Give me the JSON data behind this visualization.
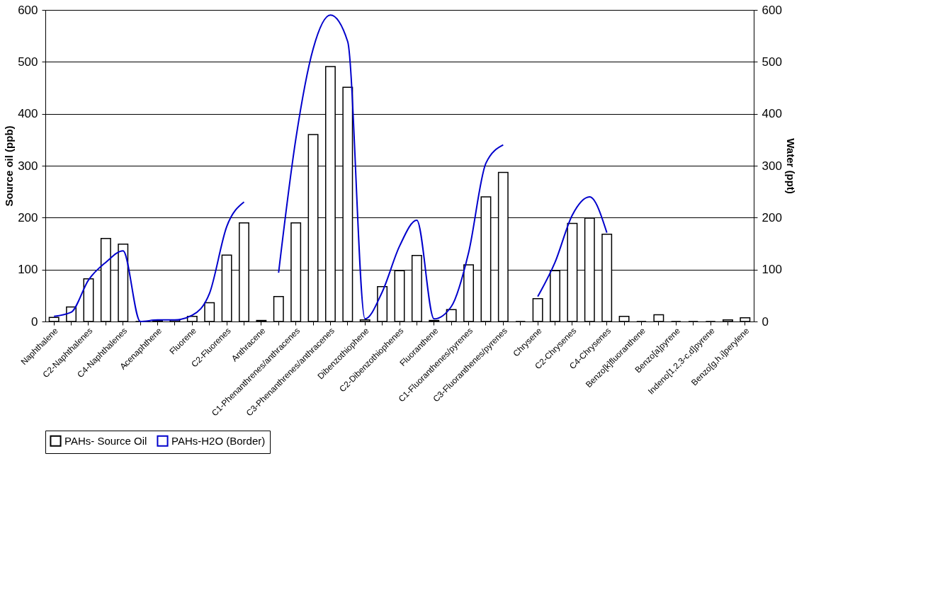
{
  "chart_data": {
    "type": "bar",
    "categories": [
      "Naphthalene",
      null,
      "C2-Naphthalenes",
      null,
      "C4-Naphthalenes",
      null,
      "Acenaphthene",
      null,
      "Fluorene",
      null,
      "C2-Fluorenes",
      null,
      "Anthracene",
      null,
      "C1-Phenanthrenes/anthracenes",
      null,
      "C3-Phenanthrenes/anthracenes",
      null,
      "Dibenzothiophene",
      null,
      "C2-Dibenzothiophenes",
      null,
      "Fluoranthene",
      null,
      "C1-Fluoranthenes/pyrenes",
      null,
      "C3-Fluoranthenes/pyrenes",
      null,
      "Chrysene",
      null,
      "C2-Chrysenes",
      null,
      "C4-Chrysenes",
      null,
      "Benzo[k]fluoranthene",
      null,
      "Benzo[a]pyrene",
      null,
      "Indeno[1,2,3-c,d]pyrene",
      null,
      "Benzo[g,h,i]perylene"
    ],
    "ylabel": "Source oil (ppb)",
    "y2label": "Water (ppt)",
    "series": [
      {
        "name": "PAHs- Source Oil",
        "color": "#000000",
        "values": [
          8,
          28,
          82,
          160,
          149,
          0,
          2,
          3,
          10,
          36,
          128,
          190,
          2,
          48,
          190,
          360,
          491,
          451,
          3,
          67,
          98,
          127,
          2,
          23,
          109,
          240,
          287,
          0,
          44,
          98,
          189,
          199,
          168,
          10,
          0,
          13,
          0,
          0,
          0,
          3,
          7
        ]
      },
      {
        "name": "PAHs-H2O (Border)",
        "type": "line",
        "axis": "y2",
        "color": "#0000cc",
        "values": [
          10,
          18,
          80,
          114,
          136,
          0,
          3,
          3,
          12,
          54,
          183,
          230,
          null,
          94,
          352,
          525,
          590,
          539,
          5,
          57,
          145,
          195,
          5,
          29,
          133,
          305,
          340,
          null,
          48,
          114,
          205,
          240,
          171,
          null,
          null,
          null,
          null,
          null,
          null,
          null,
          null
        ]
      }
    ],
    "ylim": [
      0,
      600
    ],
    "yticks": [
      0,
      100,
      200,
      300,
      400,
      500,
      600
    ],
    "y2lim": [
      0,
      600
    ],
    "y2ticks": [
      0,
      100,
      200,
      300,
      400,
      500,
      600
    ],
    "grid": "y",
    "legend": "bottom"
  }
}
